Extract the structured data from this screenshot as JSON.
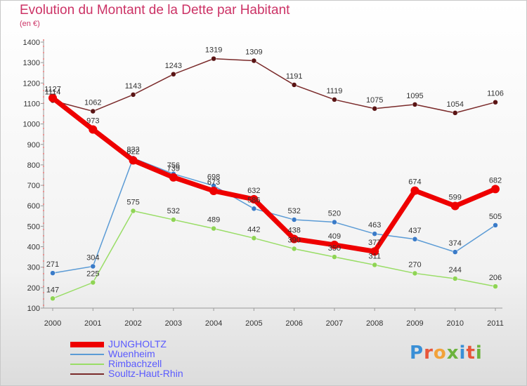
{
  "header": {
    "title": "Evolution du Montant de la Dette par Habitant",
    "subtitle": "(en €)"
  },
  "logo": {
    "text": "Proxiti",
    "colors": [
      "#3a8fd6",
      "#e8563a",
      "#f2a23a",
      "#6cb33e",
      "#3a8fd6",
      "#e8563a",
      "#6cb33e"
    ]
  },
  "chart_data": {
    "type": "line",
    "title": "Evolution du Montant de la Dette par Habitant",
    "subtitle": "(en €)",
    "xlabel": "",
    "ylabel": "",
    "x": [
      "2000",
      "2001",
      "2002",
      "2003",
      "2004",
      "2005",
      "2006",
      "2007",
      "2008",
      "2009",
      "2010",
      "2011"
    ],
    "ylim": [
      100,
      1400
    ],
    "yticks": [
      100,
      200,
      300,
      400,
      500,
      600,
      700,
      800,
      900,
      1000,
      1100,
      1200,
      1300,
      1400
    ],
    "grid": false,
    "legend_position": "bottom-left",
    "series": [
      {
        "name": "JUNGHOLTZ",
        "color": "#ee0000",
        "values": [
          1127,
          973,
          822,
          739,
          673,
          632,
          438,
          409,
          377,
          674,
          599,
          682
        ],
        "labels": [
          "1127",
          "973",
          "822",
          "739",
          "673",
          "632",
          "438",
          "409",
          "377",
          "674",
          "599",
          "682"
        ]
      },
      {
        "name": "Wuenheim",
        "color": "#5b9bd5",
        "values": [
          271,
          304,
          833,
          756,
          698,
          586,
          532,
          520,
          463,
          437,
          374,
          505
        ],
        "labels": [
          "271",
          "304",
          "833",
          "756",
          "698",
          "586",
          "532",
          "520",
          "463",
          "437",
          "374",
          "505"
        ]
      },
      {
        "name": "Rimbachzell",
        "color": "#99dd66",
        "values": [
          147,
          225,
          575,
          532,
          489,
          442,
          390,
          350,
          311,
          270,
          244,
          206
        ],
        "labels": [
          "147",
          "225",
          "575",
          "532",
          "489",
          "442",
          "390",
          "350",
          "311",
          "270",
          "244",
          "206"
        ]
      },
      {
        "name": "Soultz-Haut-Rhin",
        "color": "#7a2a2a",
        "values": [
          1114,
          1062,
          1143,
          1243,
          1319,
          1309,
          1191,
          1119,
          1075,
          1095,
          1054,
          1106
        ],
        "labels": [
          "1114",
          "1062",
          "1143",
          "1243",
          "1319",
          "1309",
          "1191",
          "1119",
          "1075",
          "1095",
          "1054",
          "1106"
        ]
      }
    ]
  }
}
